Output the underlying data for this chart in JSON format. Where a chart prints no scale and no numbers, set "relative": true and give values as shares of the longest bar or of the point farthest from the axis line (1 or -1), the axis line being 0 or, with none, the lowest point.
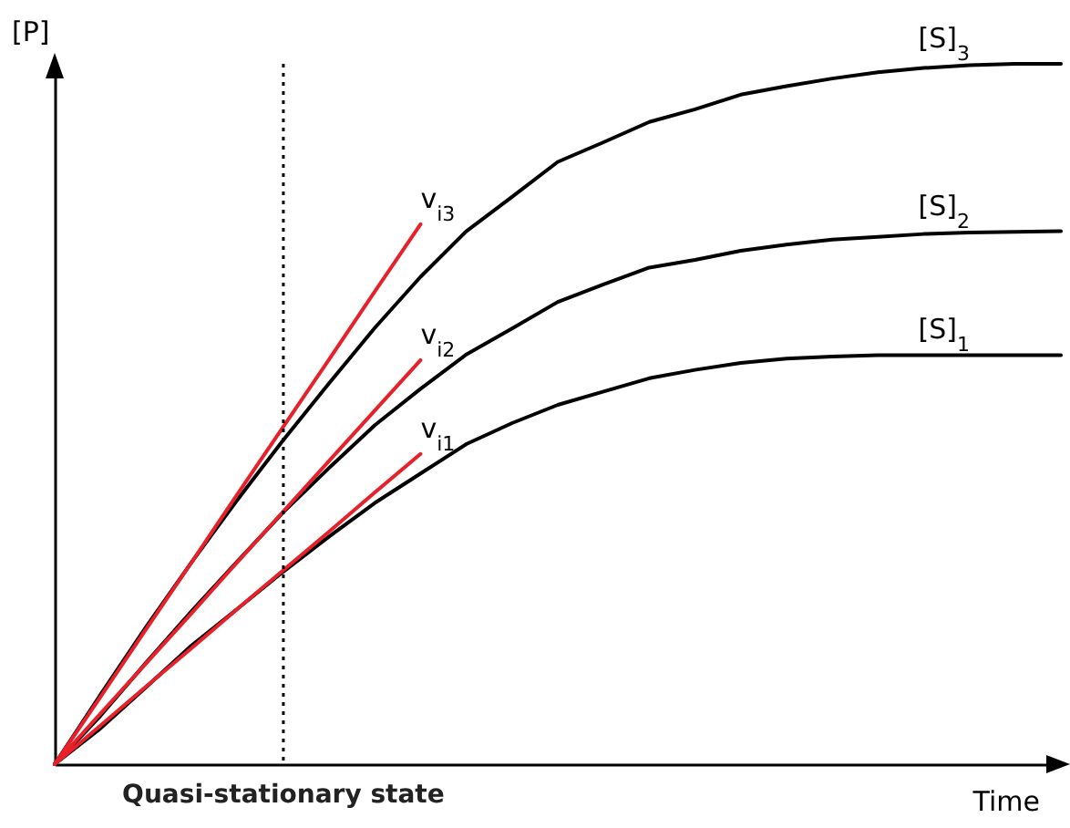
{
  "chart_data": {
    "type": "line",
    "relative": true,
    "xlabel": "Time",
    "ylabel": "[P]",
    "tick_labels": false,
    "marker": "none",
    "line_style": "solid",
    "categories": [
      null,
      null,
      null,
      null,
      null,
      null,
      null,
      null,
      null,
      null,
      null,
      null,
      null,
      null,
      null,
      null,
      null,
      null,
      null,
      null,
      null,
      null,
      null
    ],
    "series": [
      {
        "name": "[S]$_{3}$",
        "color": "#000000",
        "values": [
          0,
          0.099,
          0.196,
          0.289,
          0.378,
          0.463,
          0.544,
          0.623,
          0.696,
          0.761,
          0.81,
          0.86,
          0.888,
          0.917,
          0.935,
          0.956,
          0.968,
          0.979,
          0.988,
          0.994,
          0.998,
          1,
          1
        ]
      },
      {
        "name": "[S]$_{2}$",
        "color": "#000000",
        "values": [
          0,
          0.069,
          0.145,
          0.219,
          0.29,
          0.36,
          0.423,
          0.484,
          0.536,
          0.585,
          0.622,
          0.66,
          0.685,
          0.709,
          0.72,
          0.733,
          0.742,
          0.749,
          0.753,
          0.757,
          0.759,
          0.76,
          0.761
        ]
      },
      {
        "name": "[S]$_{1}$",
        "color": "#000000",
        "values": [
          0,
          0.051,
          0.11,
          0.17,
          0.222,
          0.275,
          0.325,
          0.373,
          0.415,
          0.457,
          0.487,
          0.513,
          0.532,
          0.551,
          0.563,
          0.573,
          0.579,
          0.582,
          0.584,
          0.584,
          0.584,
          0.584,
          0.584
        ]
      },
      {
        "name": "v$_{i3}$",
        "color": "#e8202a",
        "values": [
          0,
          0.096,
          0.193,
          0.289,
          0.386,
          0.482,
          0.578,
          0.675,
          0.771,
          null,
          null,
          null,
          null,
          null,
          null,
          null,
          null,
          null,
          null,
          null,
          null,
          null,
          null
        ]
      },
      {
        "name": "v$_{i2}$",
        "color": "#e8202a",
        "values": [
          0,
          0.072,
          0.144,
          0.216,
          0.289,
          0.361,
          0.433,
          0.505,
          0.577,
          null,
          null,
          null,
          null,
          null,
          null,
          null,
          null,
          null,
          null,
          null,
          null,
          null,
          null
        ]
      },
      {
        "name": "v$_{i1}$",
        "color": "#e8202a",
        "values": [
          0,
          0.055,
          0.111,
          0.166,
          0.222,
          0.277,
          0.332,
          0.388,
          0.443,
          null,
          null,
          null,
          null,
          null,
          null,
          null,
          null,
          null,
          null,
          null,
          null,
          null,
          null
        ]
      }
    ],
    "annotations": [
      "Quasi-stationary state"
    ]
  }
}
